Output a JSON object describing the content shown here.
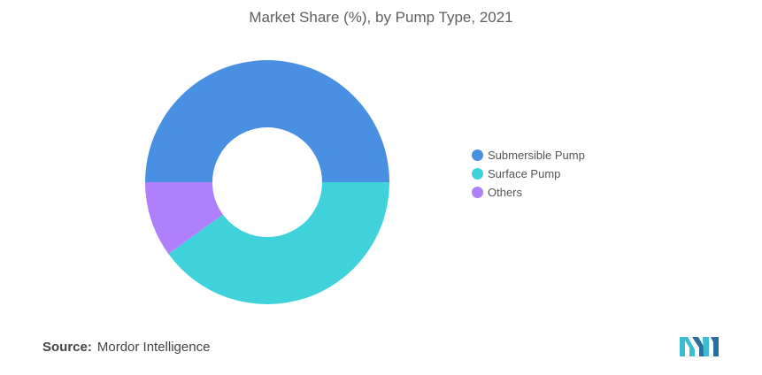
{
  "chart_data": {
    "type": "pie",
    "title": "Market Share (%), by Pump Type, 2021",
    "categories": [
      "Submersible Pump",
      "Surface Pump",
      "Others"
    ],
    "values": [
      50,
      40,
      10
    ],
    "colors": [
      "#4a90e2",
      "#3fd2da",
      "#b080fc"
    ],
    "legend_position": "right"
  },
  "source": {
    "label": "Source:",
    "text": "Mordor Intelligence"
  },
  "logo": {
    "icon": "mordor-intelligence-logo",
    "colors": [
      "#3cbcd3",
      "#2a6f9f"
    ]
  }
}
